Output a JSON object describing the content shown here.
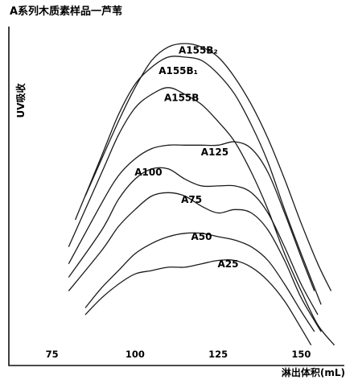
{
  "chart_data": {
    "type": "line",
    "title": "A系列木质素样品一芦苇",
    "xlabel": "淋出体积(mL)",
    "ylabel": "UV吸收",
    "xlim": [
      62,
      163
    ],
    "ylim": [
      0,
      100
    ],
    "xticks": [
      75,
      100,
      125,
      150
    ],
    "xtick_labels": [
      "75",
      "100",
      "125",
      "150"
    ],
    "series": [
      {
        "name": "A155B₂",
        "x": [
          85,
          95,
          100,
          105,
          110,
          115,
          120,
          125,
          130,
          135,
          140,
          145,
          150,
          155,
          159
        ],
        "y": [
          50,
          72,
          82,
          90,
          94,
          95,
          94,
          91,
          85,
          77,
          67,
          55,
          42,
          30,
          22
        ]
      },
      {
        "name": "A155B₁",
        "x": [
          82,
          90,
          95,
          100,
          105,
          110,
          115,
          120,
          125,
          130,
          135,
          140,
          145,
          150,
          156
        ],
        "y": [
          43,
          62,
          74,
          83,
          88,
          91,
          91,
          90,
          86,
          80,
          71,
          60,
          46,
          33,
          18
        ]
      },
      {
        "name": "A155B",
        "x": [
          80,
          90,
          95,
          100,
          105,
          110,
          115,
          120,
          125,
          130,
          135,
          140,
          145,
          150,
          155,
          160
        ],
        "y": [
          35,
          57,
          68,
          76,
          80,
          82,
          80,
          77,
          72,
          66,
          57,
          46,
          33,
          22,
          12,
          6
        ]
      },
      {
        "name": "A125",
        "x": [
          80,
          90,
          95,
          100,
          105,
          110,
          115,
          120,
          125,
          130,
          135,
          140,
          145,
          150,
          154
        ],
        "y": [
          30,
          48,
          56,
          61,
          64,
          65,
          65,
          65,
          65,
          66,
          64,
          57,
          45,
          32,
          22
        ]
      },
      {
        "name": "A100",
        "x": [
          80,
          90,
          95,
          100,
          105,
          110,
          115,
          120,
          125,
          130,
          135,
          140,
          145,
          150,
          155
        ],
        "y": [
          26,
          40,
          49,
          55,
          58,
          58,
          55,
          53,
          53,
          53,
          51,
          45,
          35,
          24,
          15
        ]
      },
      {
        "name": "A75",
        "x": [
          80,
          90,
          95,
          100,
          105,
          110,
          115,
          120,
          125,
          130,
          135,
          140,
          145,
          150,
          156
        ],
        "y": [
          22,
          34,
          41,
          46,
          50,
          51,
          50,
          47,
          45,
          46,
          45,
          40,
          31,
          20,
          10
        ]
      },
      {
        "name": "A50",
        "x": [
          85,
          90,
          95,
          100,
          105,
          110,
          115,
          120,
          125,
          130,
          135,
          140,
          145,
          150,
          154
        ],
        "y": [
          17,
          23,
          28,
          33,
          36,
          38,
          39,
          39,
          38,
          37,
          35,
          31,
          24,
          16,
          10
        ]
      },
      {
        "name": "A25",
        "x": [
          85,
          90,
          95,
          100,
          105,
          110,
          115,
          120,
          125,
          130,
          135,
          140,
          145,
          150,
          153
        ],
        "y": [
          15,
          20,
          24,
          27,
          28,
          29,
          29,
          30,
          31,
          31,
          29,
          25,
          19,
          11,
          6
        ]
      }
    ],
    "annotations": [
      {
        "text": "A155B₂",
        "x": 119,
        "y": 92
      },
      {
        "text": "A155B₁",
        "x": 113,
        "y": 86
      },
      {
        "text": "A155B",
        "x": 114,
        "y": 78
      },
      {
        "text": "A125",
        "x": 124,
        "y": 62
      },
      {
        "text": "A100",
        "x": 104,
        "y": 56
      },
      {
        "text": "A75",
        "x": 117,
        "y": 48
      },
      {
        "text": "A50",
        "x": 120,
        "y": 37
      },
      {
        "text": "A25",
        "x": 128,
        "y": 29
      }
    ],
    "grid": false,
    "legend": "none"
  }
}
